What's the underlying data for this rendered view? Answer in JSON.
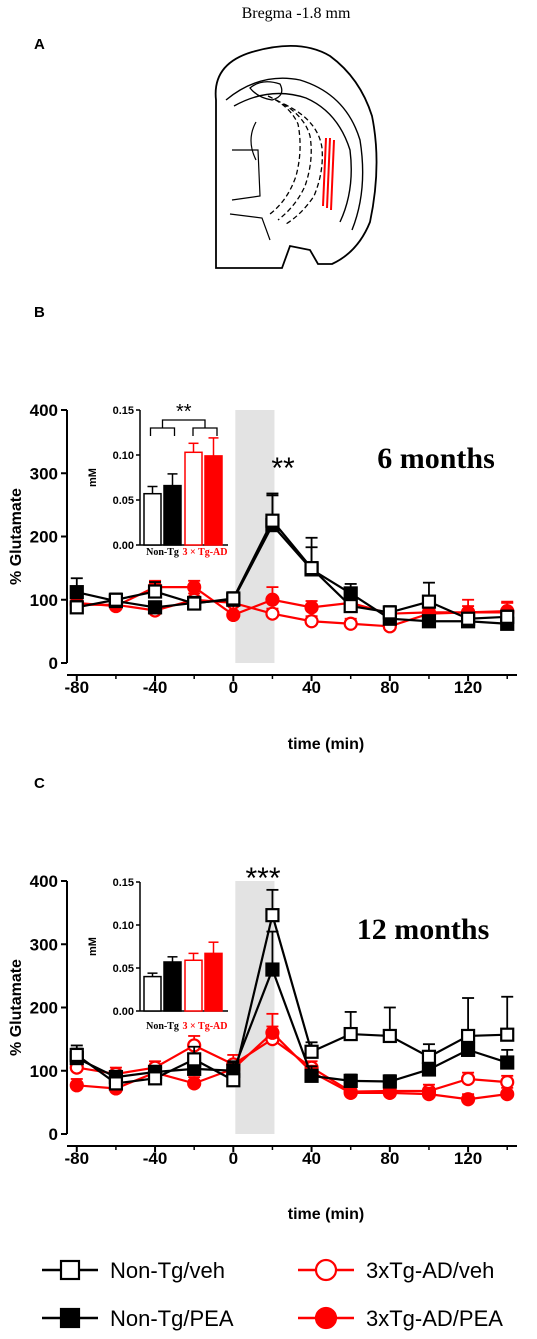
{
  "figure": {
    "panel_a": {
      "letter": "A",
      "title": "Bregma -1.8 mm"
    },
    "panel_b": {
      "letter": "B"
    },
    "panel_c": {
      "letter": "C"
    }
  },
  "legend": [
    {
      "key": "ntv",
      "label": "Non-Tg/veh",
      "marker": "square",
      "fill": "open",
      "color": "#000000"
    },
    {
      "key": "tgv",
      "label": "3xTg-AD/veh",
      "marker": "circle",
      "fill": "open",
      "color": "#ff0000"
    },
    {
      "key": "ntp",
      "label": "Non-Tg/PEA",
      "marker": "square",
      "fill": "filled",
      "color": "#000000"
    },
    {
      "key": "tgp",
      "label": "3xTg-AD/PEA",
      "marker": "circle",
      "fill": "filled",
      "color": "#ff0000"
    }
  ],
  "colors": {
    "black": "#000000",
    "red": "#ff0000",
    "shade": "#e3e3e3"
  },
  "chart_data": [
    {
      "type": "line",
      "panel": "B",
      "annotation": "6 months",
      "significance": "**",
      "ylabel": "% Glutamate",
      "xlabel": "time (min)",
      "ylim": [
        0,
        400
      ],
      "yticks": [
        0,
        100,
        200,
        300,
        400
      ],
      "xlim": [
        -85,
        145
      ],
      "xticks": [
        -80,
        -40,
        0,
        40,
        80,
        120
      ],
      "shaded_interval": [
        0,
        20
      ],
      "x": [
        -80,
        -60,
        -40,
        -20,
        0,
        20,
        40,
        60,
        80,
        100,
        120,
        140
      ],
      "series": [
        {
          "key": "ntv",
          "values": [
            88,
            100,
            113,
            94,
            102,
            225,
            150,
            90,
            80,
            97,
            70,
            73
          ],
          "errors": [
            10,
            10,
            15,
            8,
            10,
            40,
            48,
            20,
            10,
            30,
            8,
            10
          ]
        },
        {
          "key": "ntp",
          "values": [
            112,
            98,
            88,
            95,
            100,
            218,
            148,
            110,
            70,
            66,
            66,
            62
          ],
          "errors": [
            22,
            10,
            8,
            8,
            10,
            50,
            35,
            15,
            15,
            8,
            8,
            8
          ]
        },
        {
          "key": "tgv",
          "values": [
            92,
            92,
            83,
            100,
            95,
            78,
            66,
            62,
            58,
            78,
            80,
            82
          ],
          "errors": [
            8,
            8,
            8,
            10,
            10,
            8,
            8,
            8,
            8,
            10,
            20,
            15
          ]
        },
        {
          "key": "tgp",
          "values": [
            95,
            90,
            120,
            120,
            76,
            100,
            88,
            95,
            78,
            80,
            80,
            80
          ],
          "errors": [
            10,
            8,
            10,
            10,
            15,
            20,
            10,
            10,
            10,
            10,
            10,
            15
          ]
        }
      ],
      "inset": {
        "type": "bar",
        "ylabel": "mM",
        "ylim": [
          0,
          0.15
        ],
        "yticks": [
          "0.00",
          "0.05",
          "0.10",
          "0.15"
        ],
        "significance": "**",
        "group_labels": [
          "Non-Tg",
          "3 × Tg-AD"
        ],
        "bars": [
          {
            "key": "ntv",
            "value": 0.057,
            "error": 0.008
          },
          {
            "key": "ntp",
            "value": 0.066,
            "error": 0.013
          },
          {
            "key": "tgv",
            "value": 0.103,
            "error": 0.01
          },
          {
            "key": "tgp",
            "value": 0.099,
            "error": 0.02
          }
        ]
      }
    },
    {
      "type": "line",
      "panel": "C",
      "annotation": "12 months",
      "significance": "***",
      "ylabel": "% Glutamate",
      "xlabel": "time (min)",
      "ylim": [
        0,
        400
      ],
      "yticks": [
        0,
        100,
        200,
        300,
        400
      ],
      "xlim": [
        -85,
        145
      ],
      "xticks": [
        -80,
        -40,
        0,
        40,
        80,
        120
      ],
      "shaded_interval": [
        0,
        20
      ],
      "x": [
        -80,
        -60,
        -40,
        -20,
        0,
        20,
        40,
        60,
        80,
        100,
        120,
        140
      ],
      "series": [
        {
          "key": "ntv",
          "values": [
            125,
            80,
            88,
            118,
            85,
            346,
            130,
            158,
            155,
            122,
            155,
            157
          ],
          "errors": [
            15,
            15,
            15,
            20,
            28,
            40,
            15,
            35,
            45,
            20,
            60,
            60
          ]
        },
        {
          "key": "ntp",
          "values": [
            120,
            90,
            98,
            103,
            100,
            260,
            92,
            84,
            83,
            102,
            133,
            113
          ],
          "errors": [
            15,
            10,
            10,
            10,
            15,
            60,
            15,
            10,
            10,
            15,
            15,
            20
          ]
        },
        {
          "key": "tgv",
          "values": [
            105,
            95,
            105,
            140,
            110,
            150,
            105,
            67,
            68,
            68,
            87,
            82
          ],
          "errors": [
            10,
            10,
            10,
            15,
            15,
            20,
            10,
            10,
            10,
            10,
            10,
            10
          ]
        },
        {
          "key": "tgp",
          "values": [
            77,
            72,
            97,
            80,
            103,
            160,
            98,
            65,
            65,
            63,
            55,
            63
          ],
          "errors": [
            10,
            10,
            10,
            10,
            10,
            30,
            10,
            10,
            10,
            10,
            8,
            10
          ]
        }
      ],
      "inset": {
        "type": "bar",
        "ylabel": "mM",
        "ylim": [
          0,
          0.15
        ],
        "yticks": [
          "0.00",
          "0.05",
          "0.10",
          "0.15"
        ],
        "significance": "",
        "group_labels": [
          "Non-Tg",
          "3 × Tg-AD"
        ],
        "bars": [
          {
            "key": "ntv",
            "value": 0.04,
            "error": 0.004
          },
          {
            "key": "ntp",
            "value": 0.057,
            "error": 0.006
          },
          {
            "key": "tgv",
            "value": 0.059,
            "error": 0.008
          },
          {
            "key": "tgp",
            "value": 0.067,
            "error": 0.013
          }
        ]
      }
    }
  ]
}
